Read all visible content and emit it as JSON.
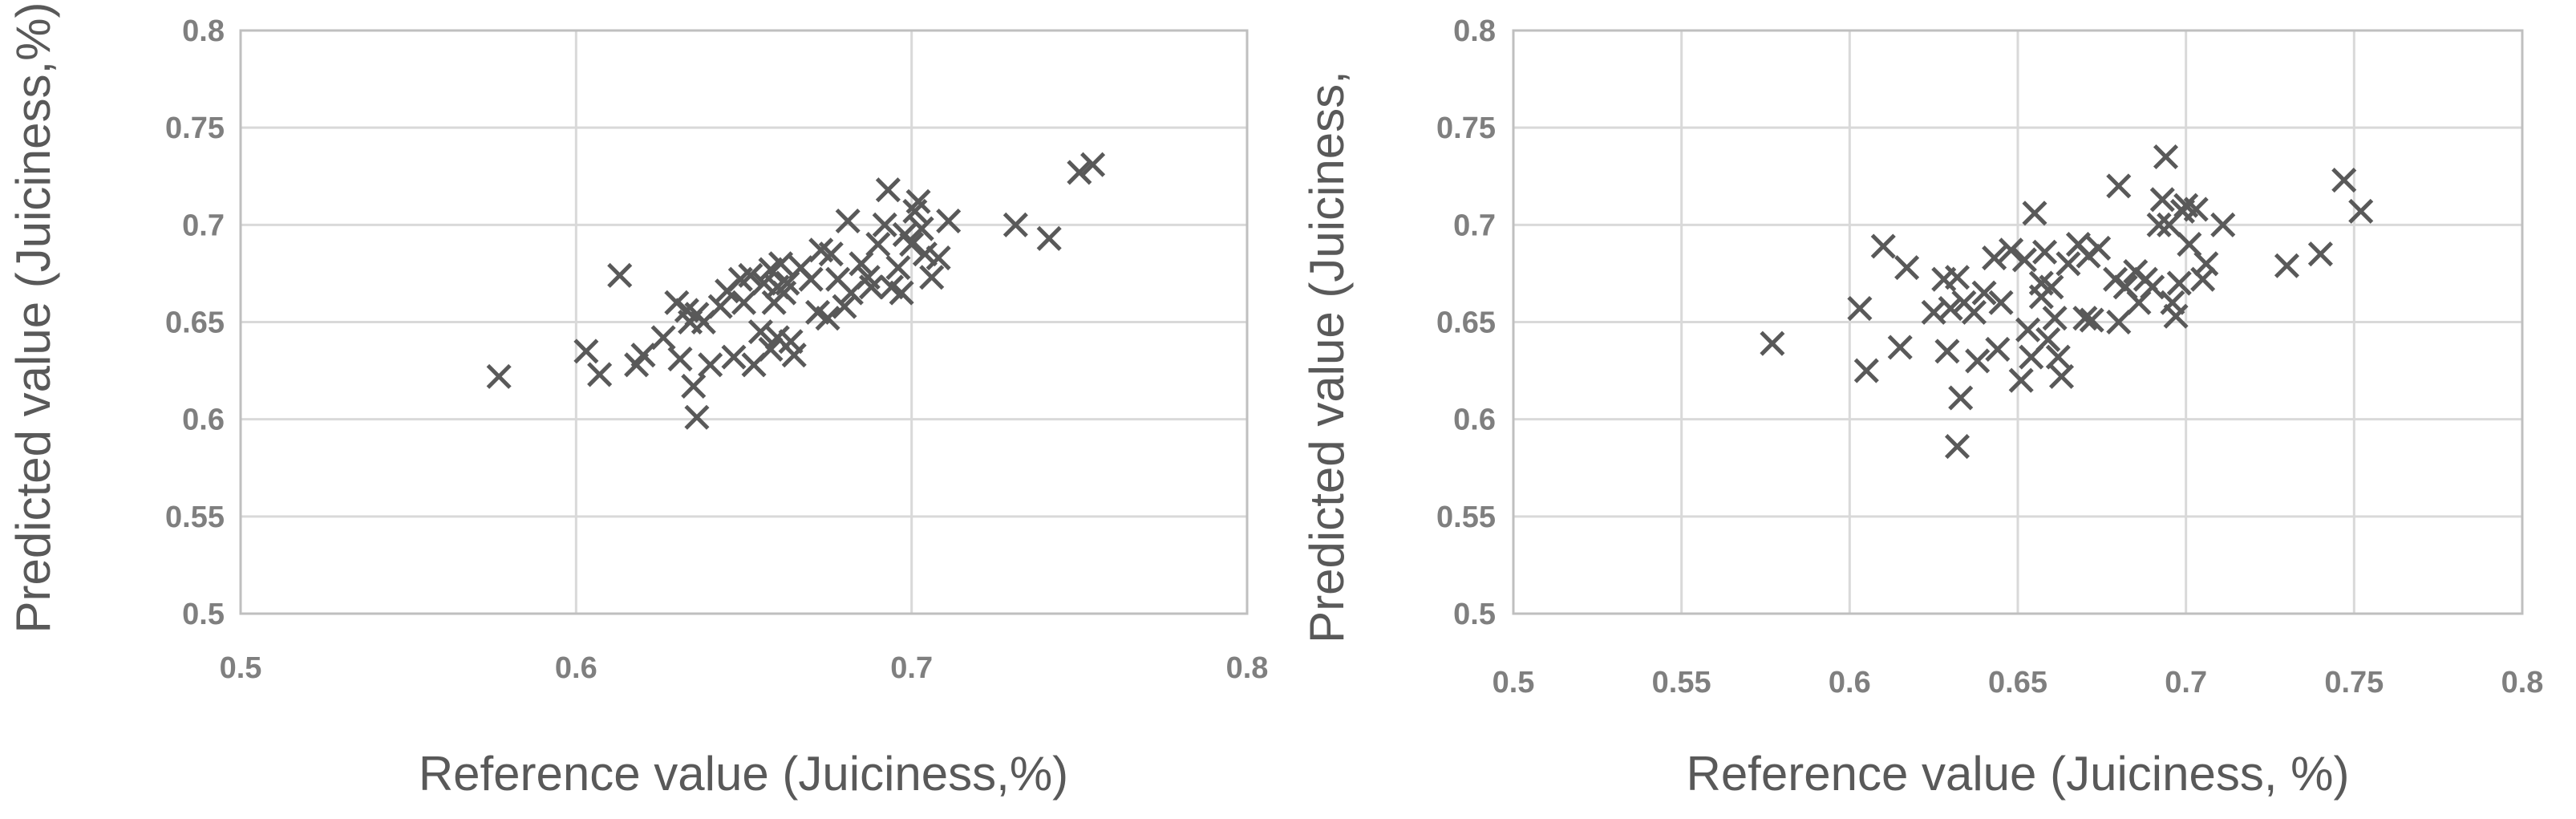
{
  "chart_data": [
    {
      "type": "scatter",
      "xlabel": "Reference value (Juiciness,%)",
      "ylabel": "Predicted value (Juiciness,%)",
      "xlim": [
        0.5,
        0.8
      ],
      "ylim": [
        0.5,
        0.8
      ],
      "xticks": [
        "0.5",
        "0.6",
        "0.7",
        "0.8"
      ],
      "yticks": [
        "0.5",
        "0.55",
        "0.6",
        "0.65",
        "0.7",
        "0.75",
        "0.8"
      ],
      "grid": true,
      "marker": "x",
      "color": "#595959",
      "points": [
        [
          0.577,
          0.622
        ],
        [
          0.603,
          0.635
        ],
        [
          0.607,
          0.623
        ],
        [
          0.613,
          0.674
        ],
        [
          0.618,
          0.628
        ],
        [
          0.62,
          0.633
        ],
        [
          0.626,
          0.642
        ],
        [
          0.63,
          0.66
        ],
        [
          0.631,
          0.631
        ],
        [
          0.633,
          0.656
        ],
        [
          0.634,
          0.65
        ],
        [
          0.635,
          0.617
        ],
        [
          0.636,
          0.601
        ],
        [
          0.636,
          0.654
        ],
        [
          0.638,
          0.65
        ],
        [
          0.64,
          0.628
        ],
        [
          0.643,
          0.658
        ],
        [
          0.645,
          0.666
        ],
        [
          0.647,
          0.632
        ],
        [
          0.649,
          0.672
        ],
        [
          0.65,
          0.66
        ],
        [
          0.652,
          0.674
        ],
        [
          0.653,
          0.628
        ],
        [
          0.655,
          0.645
        ],
        [
          0.656,
          0.67
        ],
        [
          0.658,
          0.677
        ],
        [
          0.658,
          0.636
        ],
        [
          0.659,
          0.66
        ],
        [
          0.66,
          0.668
        ],
        [
          0.66,
          0.642
        ],
        [
          0.661,
          0.68
        ],
        [
          0.662,
          0.665
        ],
        [
          0.663,
          0.67
        ],
        [
          0.664,
          0.64
        ],
        [
          0.665,
          0.633
        ],
        [
          0.667,
          0.678
        ],
        [
          0.67,
          0.672
        ],
        [
          0.672,
          0.655
        ],
        [
          0.673,
          0.687
        ],
        [
          0.675,
          0.652
        ],
        [
          0.676,
          0.685
        ],
        [
          0.678,
          0.672
        ],
        [
          0.68,
          0.658
        ],
        [
          0.681,
          0.702
        ],
        [
          0.682,
          0.665
        ],
        [
          0.685,
          0.68
        ],
        [
          0.687,
          0.673
        ],
        [
          0.688,
          0.668
        ],
        [
          0.69,
          0.69
        ],
        [
          0.692,
          0.7
        ],
        [
          0.693,
          0.718
        ],
        [
          0.694,
          0.668
        ],
        [
          0.696,
          0.678
        ],
        [
          0.697,
          0.665
        ],
        [
          0.698,
          0.695
        ],
        [
          0.7,
          0.69
        ],
        [
          0.701,
          0.707
        ],
        [
          0.702,
          0.712
        ],
        [
          0.703,
          0.698
        ],
        [
          0.704,
          0.685
        ],
        [
          0.706,
          0.673
        ],
        [
          0.708,
          0.683
        ],
        [
          0.711,
          0.702
        ],
        [
          0.731,
          0.7
        ],
        [
          0.741,
          0.693
        ],
        [
          0.75,
          0.727
        ],
        [
          0.754,
          0.731
        ]
      ]
    },
    {
      "type": "scatter",
      "xlabel": "Reference value (Juiciness, %)",
      "ylabel": "Predicted value (Juiciness,",
      "xlim": [
        0.5,
        0.8
      ],
      "ylim": [
        0.5,
        0.8
      ],
      "xticks": [
        "0.5",
        "0.55",
        "0.6",
        "0.65",
        "0.7",
        "0.75",
        "0.8"
      ],
      "yticks": [
        "0.5",
        "0.55",
        "0.6",
        "0.65",
        "0.7",
        "0.75",
        "0.8"
      ],
      "grid": true,
      "marker": "x",
      "color": "#595959",
      "points": [
        [
          0.577,
          0.639
        ],
        [
          0.603,
          0.657
        ],
        [
          0.605,
          0.625
        ],
        [
          0.61,
          0.689
        ],
        [
          0.615,
          0.637
        ],
        [
          0.617,
          0.678
        ],
        [
          0.625,
          0.655
        ],
        [
          0.628,
          0.672
        ],
        [
          0.629,
          0.635
        ],
        [
          0.63,
          0.657
        ],
        [
          0.632,
          0.673
        ],
        [
          0.632,
          0.586
        ],
        [
          0.633,
          0.611
        ],
        [
          0.634,
          0.66
        ],
        [
          0.637,
          0.655
        ],
        [
          0.638,
          0.63
        ],
        [
          0.64,
          0.665
        ],
        [
          0.643,
          0.683
        ],
        [
          0.644,
          0.636
        ],
        [
          0.645,
          0.66
        ],
        [
          0.648,
          0.687
        ],
        [
          0.651,
          0.62
        ],
        [
          0.652,
          0.682
        ],
        [
          0.653,
          0.646
        ],
        [
          0.654,
          0.632
        ],
        [
          0.655,
          0.706
        ],
        [
          0.657,
          0.67
        ],
        [
          0.657,
          0.663
        ],
        [
          0.658,
          0.686
        ],
        [
          0.659,
          0.641
        ],
        [
          0.66,
          0.668
        ],
        [
          0.661,
          0.652
        ],
        [
          0.662,
          0.632
        ],
        [
          0.663,
          0.622
        ],
        [
          0.665,
          0.68
        ],
        [
          0.668,
          0.69
        ],
        [
          0.67,
          0.652
        ],
        [
          0.671,
          0.684
        ],
        [
          0.672,
          0.651
        ],
        [
          0.674,
          0.688
        ],
        [
          0.679,
          0.672
        ],
        [
          0.68,
          0.65
        ],
        [
          0.68,
          0.72
        ],
        [
          0.682,
          0.668
        ],
        [
          0.685,
          0.676
        ],
        [
          0.686,
          0.66
        ],
        [
          0.688,
          0.672
        ],
        [
          0.69,
          0.668
        ],
        [
          0.692,
          0.7
        ],
        [
          0.693,
          0.713
        ],
        [
          0.694,
          0.735
        ],
        [
          0.695,
          0.7
        ],
        [
          0.696,
          0.66
        ],
        [
          0.697,
          0.653
        ],
        [
          0.698,
          0.67
        ],
        [
          0.699,
          0.707
        ],
        [
          0.7,
          0.71
        ],
        [
          0.701,
          0.69
        ],
        [
          0.703,
          0.708
        ],
        [
          0.705,
          0.672
        ],
        [
          0.706,
          0.68
        ],
        [
          0.711,
          0.7
        ],
        [
          0.73,
          0.679
        ],
        [
          0.74,
          0.685
        ],
        [
          0.747,
          0.723
        ],
        [
          0.752,
          0.707
        ]
      ]
    }
  ]
}
